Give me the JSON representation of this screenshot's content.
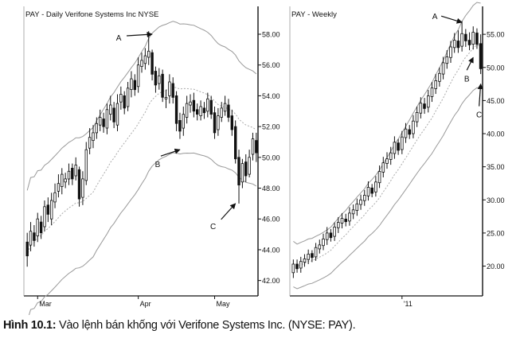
{
  "caption": {
    "label": "Hình 10.1:",
    "text": " Vào lệnh bán khống với Verifone Systems Inc. (NYSE: PAY)."
  },
  "chart_data": [
    {
      "type": "candlestick",
      "title": "PAY - Daily Verifone Systems Inc NYSE",
      "x_tick_labels": [
        "Mar",
        "Apr",
        "May"
      ],
      "y_tick_labels": [
        "42.00",
        "44.00",
        "46.00",
        "48.00",
        "50.00",
        "52.00",
        "54.00",
        "56.00",
        "58.00"
      ],
      "ylim": [
        41.0,
        59.5
      ],
      "annotations": [
        {
          "label": "A",
          "x_index": 36,
          "y": 58.0
        },
        {
          "label": "B",
          "x_index": 44,
          "y": 50.5
        },
        {
          "label": "C",
          "x_index": 60,
          "y": 47.0
        }
      ],
      "indicators": [
        "upper band",
        "moving average",
        "lower band"
      ],
      "series": {
        "open": [
          44.5,
          44.3,
          45.1,
          44.9,
          45.8,
          45.5,
          46.9,
          46.0,
          47.1,
          47.8,
          48.1,
          48.4,
          48.6,
          49.3,
          48.8,
          49.2,
          47.4,
          48.5,
          50.6,
          51.1,
          51.6,
          52.1,
          52.5,
          51.9,
          52.8,
          53.2,
          52.1,
          53.6,
          54.0,
          53.3,
          54.4,
          55.0,
          54.6,
          55.9,
          56.1,
          56.5,
          56.8,
          55.6,
          54.8,
          55.4,
          53.8,
          54.0,
          54.8,
          54.0,
          52.4,
          51.9,
          52.6,
          53.4,
          53.7,
          53.1,
          52.7,
          53.2,
          53.0,
          53.7,
          52.9,
          51.8,
          52.6,
          53.0,
          53.4,
          52.7,
          52.0,
          50.0,
          48.4,
          49.7,
          48.9,
          50.2,
          51.1
        ],
        "close": [
          43.6,
          45.2,
          44.6,
          46.0,
          45.1,
          46.8,
          46.3,
          47.2,
          47.7,
          48.3,
          48.9,
          48.6,
          49.1,
          48.6,
          49.5,
          47.3,
          48.6,
          50.5,
          51.3,
          51.6,
          52.2,
          52.6,
          52.0,
          53.1,
          53.4,
          52.3,
          53.5,
          54.1,
          53.2,
          54.5,
          55.1,
          54.4,
          56.0,
          56.3,
          56.6,
          56.9,
          55.4,
          54.7,
          55.3,
          53.9,
          53.9,
          54.9,
          53.9,
          52.2,
          51.7,
          52.8,
          53.5,
          53.6,
          53.0,
          52.8,
          53.3,
          52.9,
          53.8,
          52.8,
          51.6,
          52.7,
          53.2,
          53.5,
          52.6,
          51.8,
          49.9,
          48.2,
          49.6,
          48.8,
          50.0,
          51.2,
          50.3
        ],
        "high": [
          45.1,
          45.8,
          45.6,
          46.4,
          46.2,
          47.2,
          47.4,
          47.7,
          48.3,
          48.9,
          49.3,
          49.0,
          49.6,
          49.6,
          50.0,
          49.4,
          49.1,
          51.0,
          51.9,
          52.1,
          52.6,
          53.1,
          52.9,
          53.5,
          54.0,
          53.6,
          54.1,
          54.6,
          54.3,
          54.9,
          55.6,
          55.4,
          56.5,
          56.8,
          57.1,
          58.2,
          57.0,
          55.9,
          55.8,
          55.7,
          54.4,
          55.4,
          55.2,
          54.3,
          52.9,
          53.3,
          54.0,
          54.1,
          54.2,
          53.5,
          53.7,
          53.6,
          54.2,
          54.0,
          53.3,
          53.2,
          53.6,
          54.0,
          53.8,
          53.1,
          52.4,
          50.5,
          49.9,
          50.2,
          50.5,
          51.6,
          51.6
        ],
        "low": [
          42.9,
          43.9,
          44.2,
          44.5,
          44.7,
          45.2,
          45.8,
          45.6,
          46.7,
          47.4,
          47.6,
          48.0,
          48.2,
          48.2,
          48.5,
          46.8,
          46.9,
          48.2,
          50.2,
          50.6,
          51.2,
          51.7,
          51.6,
          51.5,
          52.4,
          51.9,
          51.7,
          53.1,
          52.8,
          53.0,
          53.9,
          54.0,
          54.2,
          55.5,
          55.7,
          56.0,
          55.0,
          54.2,
          54.4,
          53.6,
          53.2,
          53.5,
          53.5,
          51.7,
          51.2,
          51.4,
          52.2,
          52.9,
          52.6,
          52.4,
          52.4,
          52.5,
          52.6,
          52.5,
          51.2,
          51.4,
          52.3,
          52.7,
          52.3,
          51.4,
          49.6,
          47.0,
          48.0,
          48.4,
          48.7,
          49.8,
          49.7
        ]
      }
    },
    {
      "type": "candlestick",
      "title": "PAY - Weekly",
      "x_tick_labels": [
        "'11"
      ],
      "y_tick_labels": [
        "20.00",
        "25.00",
        "30.00",
        "35.00",
        "40.00",
        "45.00",
        "50.00",
        "55.00"
      ],
      "ylim": [
        15.5,
        58.5
      ],
      "annotations": [
        {
          "label": "A",
          "x_index": 45,
          "y": 56.8
        },
        {
          "label": "B",
          "x_index": 48,
          "y": 51.5
        },
        {
          "label": "C",
          "x_index": 50,
          "y": 47.5
        }
      ],
      "indicators": [
        "upper band",
        "moving average",
        "lower band"
      ],
      "series": {
        "open": [
          19.0,
          20.3,
          19.7,
          20.6,
          21.0,
          21.9,
          21.4,
          22.6,
          23.1,
          24.0,
          25.0,
          24.5,
          25.8,
          26.5,
          27.1,
          26.8,
          27.9,
          28.4,
          29.3,
          29.9,
          30.6,
          31.8,
          31.2,
          32.6,
          34.2,
          35.5,
          36.1,
          37.0,
          38.6,
          37.6,
          39.4,
          40.6,
          40.0,
          41.8,
          43.1,
          44.5,
          44.0,
          45.6,
          46.8,
          47.9,
          49.0,
          50.6,
          51.5,
          53.0,
          54.0,
          53.2,
          55.0,
          54.1,
          53.5,
          55.2,
          53.6
        ],
        "close": [
          20.3,
          19.6,
          20.7,
          21.1,
          21.8,
          21.3,
          22.8,
          23.2,
          24.1,
          25.0,
          24.3,
          25.9,
          26.6,
          27.2,
          26.7,
          28.0,
          28.5,
          29.4,
          30.0,
          30.7,
          31.9,
          31.0,
          32.7,
          34.3,
          35.6,
          36.2,
          37.1,
          38.7,
          37.5,
          39.5,
          40.7,
          39.9,
          41.9,
          43.2,
          44.6,
          43.8,
          45.7,
          46.9,
          48.0,
          49.1,
          50.7,
          51.6,
          53.1,
          54.1,
          53.0,
          55.1,
          54.0,
          53.4,
          55.3,
          53.5,
          49.8
        ],
        "high": [
          21.0,
          21.0,
          21.4,
          21.8,
          22.5,
          22.4,
          23.5,
          24.0,
          24.9,
          25.9,
          25.6,
          26.6,
          27.4,
          28.0,
          27.9,
          28.9,
          29.3,
          30.2,
          30.8,
          31.5,
          32.8,
          32.4,
          33.6,
          35.2,
          36.5,
          37.2,
          38.0,
          39.6,
          39.2,
          40.4,
          41.6,
          41.3,
          42.8,
          44.1,
          45.5,
          45.4,
          46.6,
          47.8,
          49.0,
          50.0,
          51.6,
          52.6,
          54.0,
          55.2,
          55.6,
          57.0,
          55.8,
          55.3,
          56.2,
          55.9,
          55.0
        ],
        "low": [
          18.2,
          19.0,
          19.0,
          19.9,
          20.3,
          20.6,
          20.8,
          21.9,
          22.4,
          23.2,
          23.7,
          23.8,
          25.0,
          25.7,
          26.0,
          26.1,
          27.1,
          27.6,
          28.5,
          29.1,
          29.9,
          30.4,
          30.5,
          31.8,
          33.4,
          34.7,
          35.3,
          36.2,
          36.8,
          36.9,
          38.6,
          39.2,
          39.3,
          41.0,
          42.3,
          43.0,
          43.2,
          44.8,
          46.0,
          47.1,
          48.2,
          49.8,
          50.7,
          52.2,
          52.2,
          52.4,
          53.1,
          52.6,
          52.7,
          52.8,
          49.0
        ]
      }
    }
  ]
}
